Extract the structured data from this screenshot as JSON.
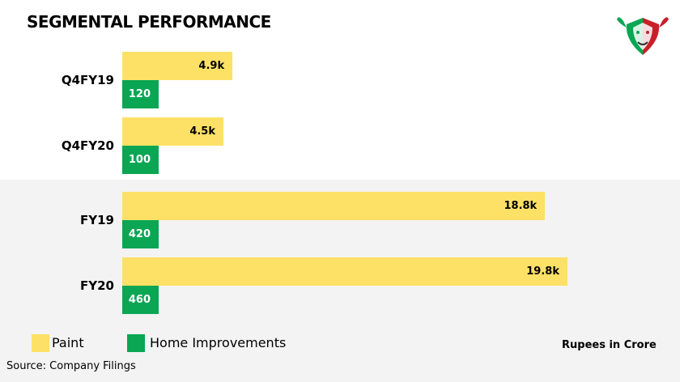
{
  "title": "SEGMENTAL PERFORMANCE",
  "units_note": "Rupees in Crore",
  "source": "Source: Company Filings",
  "legend": [
    {
      "label": "Paint",
      "color": "#fde166"
    },
    {
      "label": "Home Improvements",
      "color": "#0aa653"
    }
  ],
  "logo_icon": "bull-bear-logo-icon",
  "chart_data": {
    "type": "bar",
    "orientation": "horizontal",
    "categories": [
      "Q4FY19",
      "Q4FY20",
      "FY19",
      "FY20"
    ],
    "series": [
      {
        "name": "Paint",
        "values": [
          4900,
          4500,
          18800,
          19800
        ],
        "labels": [
          "4.9k",
          "4.5k",
          "18.8k",
          "19.8k"
        ],
        "color": "#fde166"
      },
      {
        "name": "Home Improvements",
        "values": [
          120,
          100,
          420,
          460
        ],
        "labels": [
          "120",
          "100",
          "420",
          "460"
        ],
        "color": "#0aa653"
      }
    ],
    "legend_position": "bottom-left",
    "grid": false
  }
}
